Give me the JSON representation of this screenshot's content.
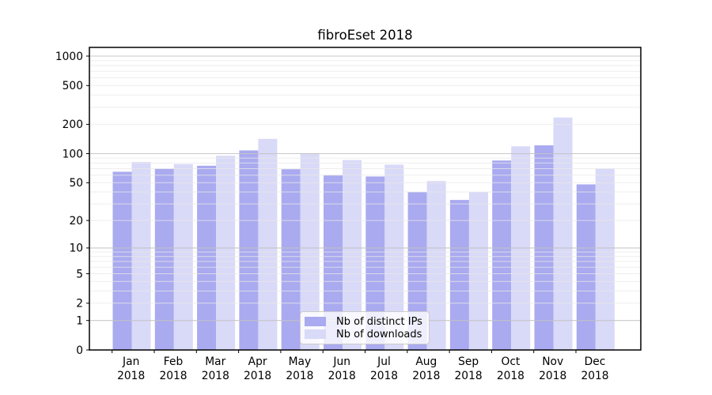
{
  "title": "fibroEset 2018",
  "chart_data": {
    "type": "bar",
    "title": "fibroEset 2018",
    "categories": [
      "Jan",
      "Feb",
      "Mar",
      "Apr",
      "May",
      "Jun",
      "Jul",
      "Aug",
      "Sep",
      "Oct",
      "Nov",
      "Dec"
    ],
    "x_year": "2018",
    "series": [
      {
        "name": "Nb of distinct IPs",
        "color": "#aaaaf0",
        "values": [
          65,
          70,
          75,
          108,
          69,
          60,
          58,
          40,
          33,
          85,
          122,
          48
        ]
      },
      {
        "name": "Nb of downloads",
        "color": "#d9d9f8",
        "values": [
          82,
          78,
          95,
          142,
          101,
          86,
          77,
          52,
          40,
          119,
          235,
          70
        ]
      }
    ],
    "yscale": "symlog-log1p",
    "yticks": [
      0,
      1,
      2,
      5,
      10,
      20,
      50,
      100,
      200,
      500,
      1000
    ],
    "ylim": [
      0,
      1230
    ],
    "grid": "on",
    "grid_major_color": "#c3c3c3",
    "grid_minor_color": "#e9e9e9",
    "frame_color": "#000000",
    "legend_position": "bottom-center"
  }
}
